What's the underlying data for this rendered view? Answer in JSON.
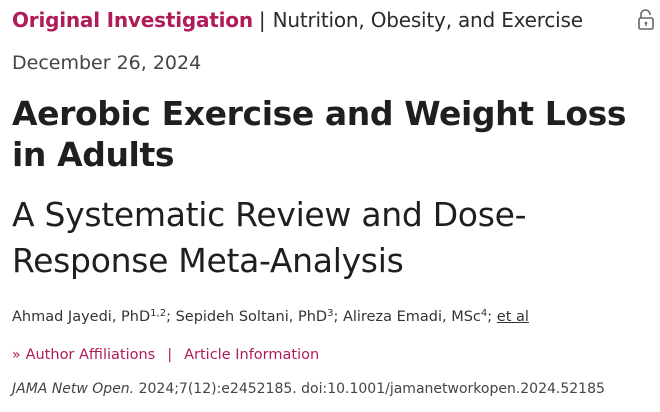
{
  "header": {
    "article_type": "Original Investigation",
    "separator": "|",
    "subject": "Nutrition, Obesity, and Exercise",
    "access_icon": "open-lock-icon"
  },
  "publication_date": "December 26, 2024",
  "title": "Aerobic Exercise and Weight Loss in Adults",
  "subtitle": "A Systematic Review and Dose-Response Meta-Analysis",
  "authors": [
    {
      "name": "Ahmad Jayedi, PhD",
      "affil": "1,2"
    },
    {
      "name": "Sepideh Soltani, PhD",
      "affil": "3"
    },
    {
      "name": "Alireza Emadi, MSc",
      "affil": "4"
    }
  ],
  "author_separator": ";",
  "et_al": "et al",
  "info_links": {
    "chevron": "»",
    "author_affiliations": "Author Affiliations",
    "separator": "|",
    "article_information": "Article Information"
  },
  "citation": {
    "journal": "JAMA Netw Open.",
    "details": " 2024;7(12):e2452185. doi:10.1001/jamanetworkopen.2024.52185"
  },
  "colors": {
    "accent": "#b01c5a",
    "text": "#1f1f1f"
  }
}
